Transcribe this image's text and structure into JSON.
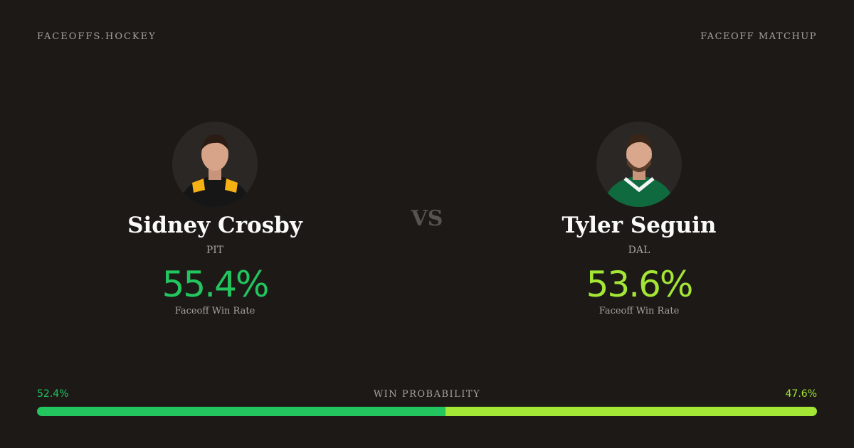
{
  "header": {
    "site": "FACEOFFS.HOCKEY",
    "label": "FACEOFF MATCHUP"
  },
  "vs": "VS",
  "players": [
    {
      "name": "Sidney Crosby",
      "team": "PIT",
      "win_rate": "55.4%",
      "win_rate_label": "Faceoff Win Rate",
      "color": "#22c55e"
    },
    {
      "name": "Tyler Seguin",
      "team": "DAL",
      "win_rate": "53.6%",
      "win_rate_label": "Faceoff Win Rate",
      "color": "#a3e635"
    }
  ],
  "probability": {
    "label": "WIN PROBABILITY",
    "left": {
      "value": 52.4,
      "label": "52.4%"
    },
    "right": {
      "value": 47.6,
      "label": "47.6%"
    }
  }
}
